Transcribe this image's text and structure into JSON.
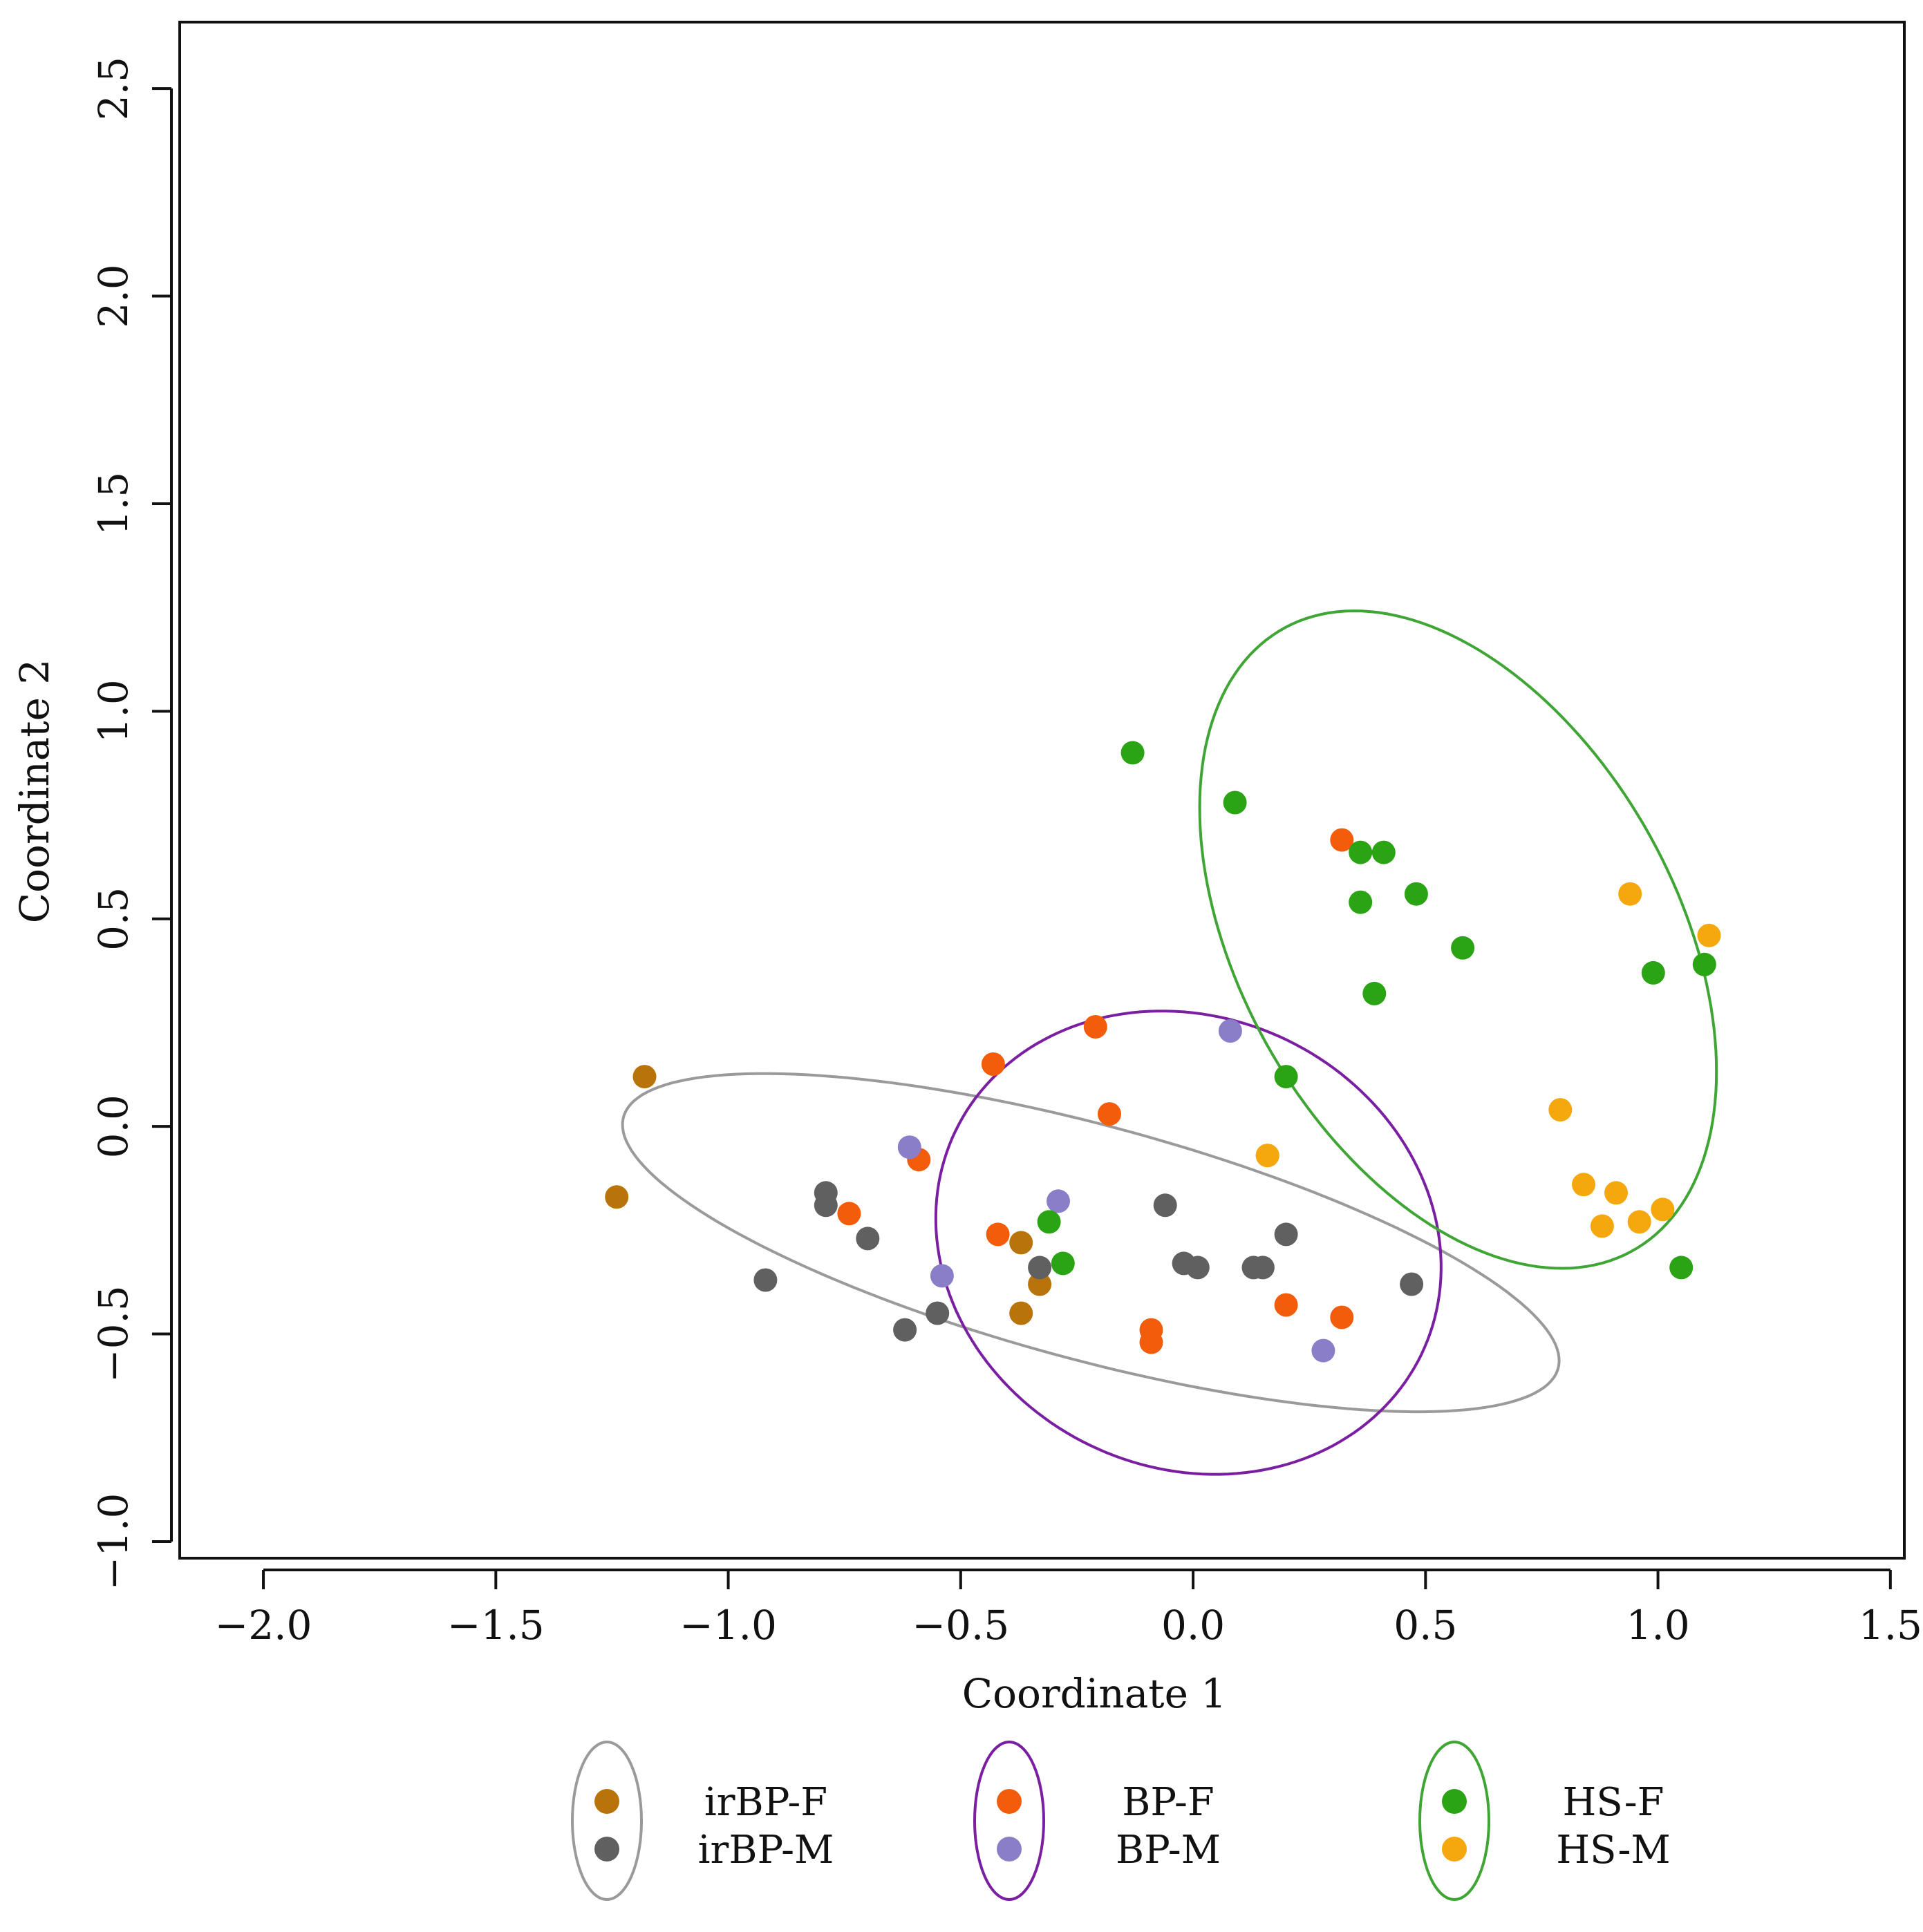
{
  "chart_data": {
    "type": "scatter",
    "title": "",
    "xlabel": "Coordinate 1",
    "ylabel": "Coordinate 2",
    "xlim": [
      -2.18,
      1.53
    ],
    "ylim": [
      -1.04,
      2.66
    ],
    "xticks": [
      -2.0,
      -1.5,
      -1.0,
      -0.5,
      0.0,
      0.5,
      1.0,
      1.5
    ],
    "xtick_labels": [
      "−2.0",
      "−1.5",
      "−1.0",
      "−0.5",
      "0.0",
      "0.5",
      "1.0",
      "1.5"
    ],
    "yticks": [
      -1.0,
      -0.5,
      0.0,
      0.5,
      1.0,
      1.5,
      2.0,
      2.5
    ],
    "ytick_labels": [
      "−1.0",
      "−0.5",
      "0.0",
      "0.5",
      "1.0",
      "1.5",
      "2.0",
      "2.5"
    ],
    "grid": false,
    "legend_position": "bottom",
    "series": [
      {
        "name": "irBP-F",
        "color": "#b8730a",
        "points": [
          [
            -1.18,
            0.12
          ],
          [
            -1.24,
            -0.17
          ],
          [
            -0.37,
            -0.28
          ],
          [
            -0.33,
            -0.38
          ],
          [
            -0.37,
            -0.45
          ]
        ]
      },
      {
        "name": "irBP-M",
        "color": "#606060",
        "points": [
          [
            -0.92,
            -0.37
          ],
          [
            -0.79,
            -0.16
          ],
          [
            -0.79,
            -0.19
          ],
          [
            -0.7,
            -0.27
          ],
          [
            -0.62,
            -0.49
          ],
          [
            -0.55,
            -0.45
          ],
          [
            -0.33,
            -0.34
          ],
          [
            -0.06,
            -0.19
          ],
          [
            -0.02,
            -0.33
          ],
          [
            0.01,
            -0.34
          ],
          [
            0.13,
            -0.34
          ],
          [
            0.15,
            -0.34
          ],
          [
            0.2,
            -0.26
          ],
          [
            0.47,
            -0.38
          ]
        ]
      },
      {
        "name": "BP-F",
        "color": "#f25c0a",
        "points": [
          [
            -0.43,
            0.15
          ],
          [
            -0.21,
            0.24
          ],
          [
            -0.18,
            0.03
          ],
          [
            -0.59,
            -0.08
          ],
          [
            -0.74,
            -0.21
          ],
          [
            -0.42,
            -0.26
          ],
          [
            -0.09,
            -0.49
          ],
          [
            -0.09,
            -0.52
          ],
          [
            0.2,
            -0.43
          ],
          [
            0.32,
            -0.46
          ],
          [
            0.32,
            0.69
          ],
          [
            0.16,
            -0.07
          ]
        ]
      },
      {
        "name": "BP-M",
        "color": "#8a7ec8",
        "points": [
          [
            -0.61,
            -0.05
          ],
          [
            -0.54,
            -0.36
          ],
          [
            -0.29,
            -0.18
          ],
          [
            0.08,
            0.23
          ],
          [
            0.28,
            -0.54
          ]
        ]
      },
      {
        "name": "HS-F",
        "color": "#2aa314",
        "points": [
          [
            -0.13,
            0.9
          ],
          [
            0.09,
            0.78
          ],
          [
            0.36,
            0.66
          ],
          [
            0.41,
            0.66
          ],
          [
            0.36,
            0.54
          ],
          [
            0.48,
            0.56
          ],
          [
            0.58,
            0.43
          ],
          [
            0.39,
            0.32
          ],
          [
            0.99,
            0.37
          ],
          [
            1.1,
            0.39
          ],
          [
            0.2,
            0.12
          ],
          [
            -0.31,
            -0.23
          ],
          [
            -0.28,
            -0.33
          ],
          [
            1.05,
            -0.34
          ]
        ]
      },
      {
        "name": "HS-M",
        "color": "#f5a80e",
        "points": [
          [
            0.94,
            0.56
          ],
          [
            1.11,
            0.46
          ],
          [
            0.79,
            0.04
          ],
          [
            0.84,
            -0.14
          ],
          [
            0.91,
            -0.16
          ],
          [
            0.88,
            -0.24
          ],
          [
            0.96,
            -0.23
          ],
          [
            1.01,
            -0.2
          ],
          [
            0.16,
            -0.07
          ]
        ]
      }
    ],
    "ellipses": [
      {
        "group": "irBP",
        "color": "#9a9a9a",
        "center": [
          -0.22,
          -0.28
        ],
        "semi_axes": [
          1.05,
          0.28
        ],
        "angle_deg": -17
      },
      {
        "group": "BP",
        "color": "#7b1fa2",
        "center": [
          -0.01,
          -0.28
        ],
        "semi_axes": [
          0.58,
          0.52
        ],
        "angle_deg": -52
      },
      {
        "group": "HS",
        "color": "#3fa535",
        "center": [
          0.57,
          0.45
        ],
        "semi_axes": [
          0.84,
          0.48
        ],
        "angle_deg": -66
      }
    ],
    "legend": [
      {
        "group": "irBP",
        "color": "#9a9a9a",
        "entries": [
          "irBP-F",
          "irBP-M"
        ]
      },
      {
        "group": "BP",
        "color": "#7b1fa2",
        "entries": [
          "BP-F",
          "BP-M"
        ]
      },
      {
        "group": "HS",
        "color": "#3fa535",
        "entries": [
          "HS-F",
          "HS-M"
        ]
      }
    ]
  }
}
